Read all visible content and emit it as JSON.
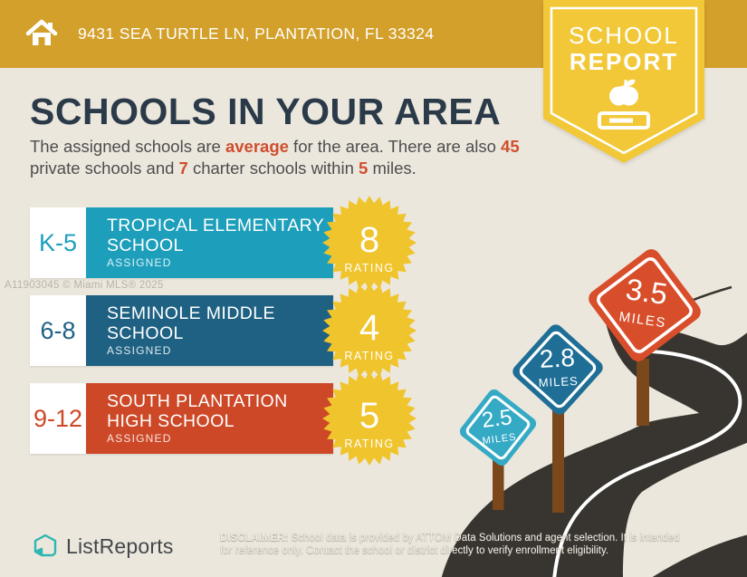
{
  "header": {
    "address": "9431 SEA TURTLE LN, PLANTATION, FL 33324",
    "icon": "home-icon",
    "background_color": "#D3A02B"
  },
  "badge": {
    "line1": "SCHOOL",
    "line2": "REPORT",
    "icon": "apple-on-book-icon",
    "background_color": "#F2C838"
  },
  "title": "SCHOOLS IN YOUR AREA",
  "intro": {
    "part1": "The assigned schools are ",
    "highlight1": "average",
    "part2": " for the area. There are also ",
    "highlight2": "45",
    "part3": " private schools and ",
    "highlight3": "7",
    "part4": " charter schools within ",
    "highlight4": "5",
    "part5": " miles.",
    "highlight_color": "#CF4E2D"
  },
  "schools": [
    {
      "grades": "K-5",
      "name_line1": "TROPICAL ELEMENTARY",
      "name_line2": "SCHOOL",
      "status": "ASSIGNED",
      "rating": "8",
      "rating_label": "RATING",
      "color": "#1D9FBC"
    },
    {
      "grades": "6-8",
      "name_line1": "SEMINOLE MIDDLE",
      "name_line2": "SCHOOL",
      "status": "ASSIGNED",
      "rating": "4",
      "rating_label": "RATING",
      "color": "#1F6183"
    },
    {
      "grades": "9-12",
      "name_line1": "SOUTH PLANTATION",
      "name_line2": "HIGH SCHOOL",
      "status": "ASSIGNED",
      "rating": "5",
      "rating_label": "RATING",
      "color": "#CD4827"
    }
  ],
  "mile_signs": [
    {
      "value": "2.5",
      "label": "MILES",
      "color": "#35AAC5"
    },
    {
      "value": "2.8",
      "label": "MILES",
      "color": "#1E6E96"
    },
    {
      "value": "3.5",
      "label": "MILES",
      "color": "#D84E2B"
    }
  ],
  "watermark": "A11903045 © Miami MLS® 2025",
  "footer": {
    "brand": "ListReports",
    "logo_icon": "listreports-house-page-icon",
    "disclaimer_label": "DISCLAIMER:",
    "disclaimer_line1": " School data is provided by ATTOM Data Solutions and agent selection. It is intended",
    "disclaimer_line2": "for reference only. Contact the school or district directly to verify enrollment eligibility."
  },
  "colors": {
    "background": "#ECE7DD",
    "title_navy": "#2B3A49",
    "body_text": "#4D4D4D",
    "rating_star_yellow": "#F0C42C",
    "road": "#38342F",
    "sign_post_brown": "#7A481B",
    "logo_teal": "#2EB6B0"
  }
}
